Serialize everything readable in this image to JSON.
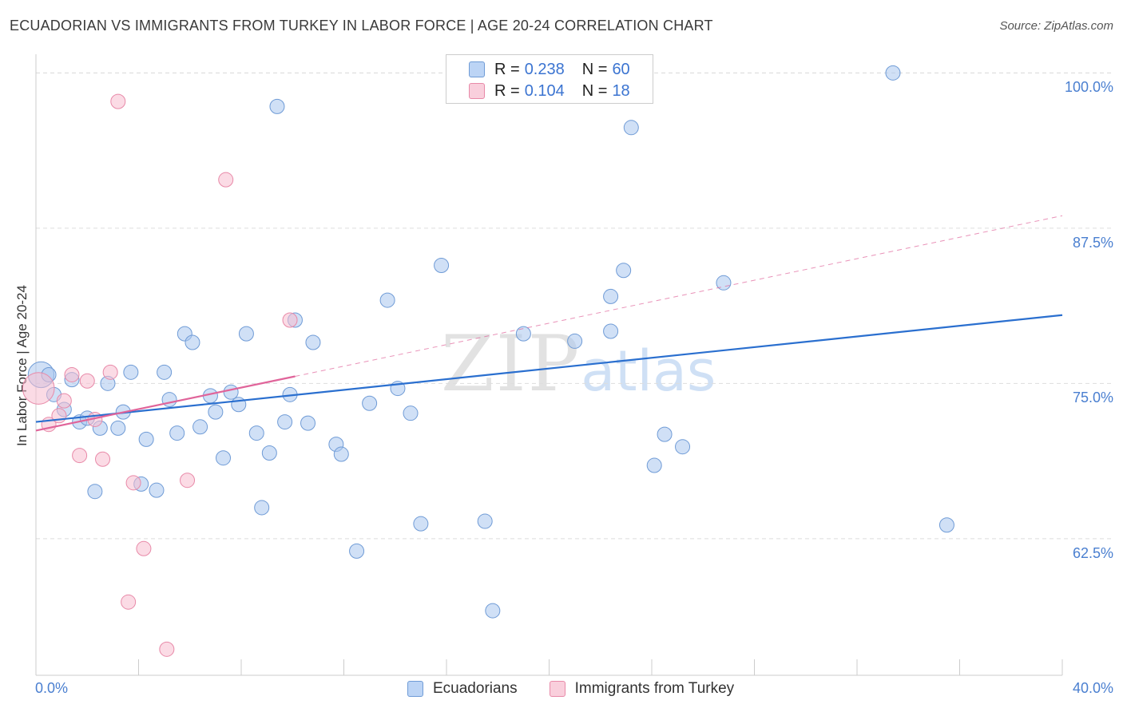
{
  "chart_data": {
    "type": "scatter",
    "title": "ECUADORIAN VS IMMIGRANTS FROM TURKEY IN LABOR FORCE | AGE 20-24 CORRELATION CHART",
    "source": "Source: ZipAtlas.com",
    "xlabel": "",
    "ylabel": "In Labor Force | Age 20-24",
    "xlim": [
      0,
      40
    ],
    "ylim": [
      51.5,
      101.5
    ],
    "x_tick_labels": [
      "0.0%",
      "40.0%"
    ],
    "y_ticks": [
      62.5,
      75.0,
      87.5,
      100.0
    ],
    "y_tick_labels": [
      "62.5%",
      "75.0%",
      "87.5%",
      "100.0%"
    ],
    "grid": true,
    "legend_stats": [
      {
        "r_label": "R =",
        "r_value": "0.238",
        "n_label": "N =",
        "n_value": "60"
      },
      {
        "r_label": "R =",
        "r_value": "0.104",
        "n_label": "N =",
        "n_value": "18"
      }
    ],
    "watermark": {
      "zip": "ZIP",
      "atlas": "atlas"
    },
    "series": [
      {
        "name": "Ecuadorians",
        "color": "#a9c6ef",
        "edge": "#6f9bd6",
        "line_color": "#2a6fcf",
        "trend": {
          "x0": 0,
          "y0": 71.9,
          "x1": 40,
          "y1": 80.5,
          "dashed_from": null
        },
        "points": [
          [
            0.2,
            75.7,
            1.8
          ],
          [
            0.5,
            75.7,
            1.0
          ],
          [
            0.7,
            74.1,
            1.0
          ],
          [
            1.1,
            72.9,
            1.0
          ],
          [
            1.4,
            75.3,
            1.0
          ],
          [
            1.7,
            71.9,
            1.0
          ],
          [
            2.0,
            72.2,
            1.0
          ],
          [
            2.3,
            66.3,
            1.0
          ],
          [
            2.5,
            71.4,
            1.0
          ],
          [
            2.8,
            75.0,
            1.0
          ],
          [
            3.2,
            71.4,
            1.0
          ],
          [
            3.4,
            72.7,
            1.0
          ],
          [
            3.7,
            75.9,
            1.0
          ],
          [
            4.1,
            66.9,
            1.0
          ],
          [
            4.3,
            70.5,
            1.0
          ],
          [
            4.7,
            66.4,
            1.0
          ],
          [
            5.0,
            75.9,
            1.0
          ],
          [
            5.2,
            73.7,
            1.0
          ],
          [
            5.5,
            71.0,
            1.0
          ],
          [
            5.8,
            79.0,
            1.0
          ],
          [
            6.1,
            78.3,
            1.0
          ],
          [
            6.4,
            71.5,
            1.0
          ],
          [
            6.8,
            74.0,
            1.0
          ],
          [
            7.0,
            72.7,
            1.0
          ],
          [
            7.3,
            69.0,
            1.0
          ],
          [
            7.6,
            74.3,
            1.0
          ],
          [
            7.9,
            73.3,
            1.0
          ],
          [
            8.2,
            79.0,
            1.0
          ],
          [
            8.6,
            71.0,
            1.0
          ],
          [
            8.8,
            65.0,
            1.0
          ],
          [
            9.1,
            69.4,
            1.0
          ],
          [
            9.4,
            97.3,
            1.0
          ],
          [
            9.7,
            71.9,
            1.0
          ],
          [
            9.9,
            74.1,
            1.0
          ],
          [
            10.1,
            80.1,
            1.0
          ],
          [
            10.6,
            71.8,
            1.0
          ],
          [
            10.8,
            78.3,
            1.0
          ],
          [
            11.7,
            70.1,
            1.0
          ],
          [
            11.9,
            69.3,
            1.0
          ],
          [
            12.5,
            61.5,
            1.0
          ],
          [
            13.0,
            73.4,
            1.0
          ],
          [
            13.7,
            81.7,
            1.0
          ],
          [
            14.1,
            74.6,
            1.0
          ],
          [
            14.6,
            72.6,
            1.0
          ],
          [
            15.0,
            63.7,
            1.0
          ],
          [
            15.8,
            84.5,
            1.0
          ],
          [
            17.5,
            63.9,
            1.0
          ],
          [
            17.8,
            56.7,
            1.0
          ],
          [
            19.0,
            79.0,
            1.0
          ],
          [
            21.0,
            78.4,
            1.0
          ],
          [
            22.4,
            79.2,
            1.0
          ],
          [
            22.4,
            82.0,
            1.0
          ],
          [
            22.9,
            84.1,
            1.0
          ],
          [
            23.2,
            95.6,
            1.0
          ],
          [
            24.1,
            68.4,
            1.0
          ],
          [
            24.5,
            70.9,
            1.0
          ],
          [
            25.2,
            69.9,
            1.0
          ],
          [
            26.8,
            83.1,
            1.0
          ],
          [
            33.4,
            100.0,
            1.0
          ],
          [
            35.5,
            63.6,
            1.0
          ]
        ]
      },
      {
        "name": "Immigrants from Turkey",
        "color": "#f7bed0",
        "edge": "#e889a8",
        "line_color": "#e0649a",
        "trend": {
          "x0": 0,
          "y0": 71.2,
          "x1": 40,
          "y1": 88.5,
          "solid_to": 10.1
        },
        "points": [
          [
            0.1,
            74.6,
            2.2
          ],
          [
            0.5,
            71.7,
            1.0
          ],
          [
            0.9,
            72.4,
            1.0
          ],
          [
            1.1,
            73.6,
            1.0
          ],
          [
            1.4,
            75.7,
            1.0
          ],
          [
            1.7,
            69.2,
            1.0
          ],
          [
            2.0,
            75.2,
            1.0
          ],
          [
            2.3,
            72.1,
            1.0
          ],
          [
            2.6,
            68.9,
            1.0
          ],
          [
            2.9,
            75.9,
            1.0
          ],
          [
            3.2,
            97.7,
            1.0
          ],
          [
            3.6,
            57.4,
            1.0
          ],
          [
            3.8,
            67.0,
            1.0
          ],
          [
            4.2,
            61.7,
            1.0
          ],
          [
            5.1,
            53.6,
            1.0
          ],
          [
            5.9,
            67.2,
            1.0
          ],
          [
            7.4,
            91.4,
            1.0
          ],
          [
            9.9,
            80.1,
            1.0
          ]
        ]
      }
    ]
  }
}
